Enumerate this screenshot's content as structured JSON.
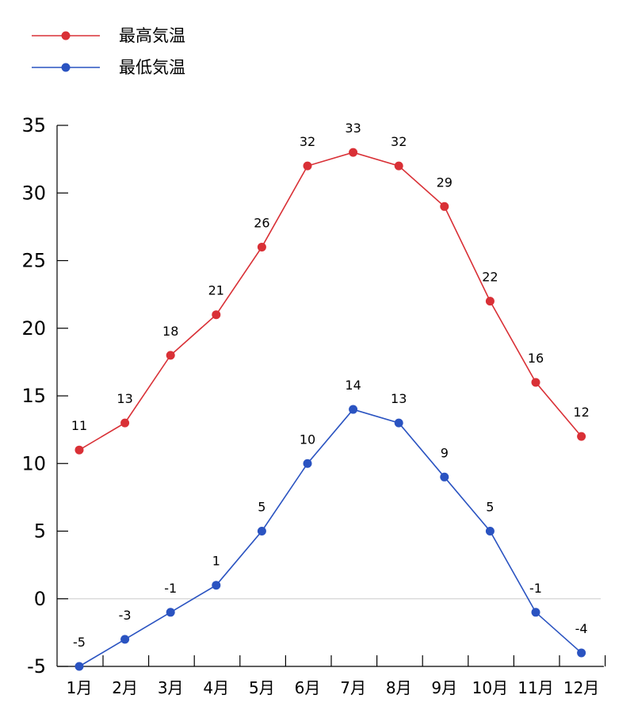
{
  "chart_data": {
    "type": "line",
    "categories": [
      "1月",
      "2月",
      "3月",
      "4月",
      "5月",
      "6月",
      "7月",
      "8月",
      "9月",
      "10月",
      "11月",
      "12月"
    ],
    "series": [
      {
        "name": "最高気温",
        "color": "#d93036",
        "values": [
          11,
          13,
          18,
          21,
          26,
          32,
          33,
          32,
          29,
          22,
          16,
          12
        ]
      },
      {
        "name": "最低気温",
        "color": "#2a53c1",
        "values": [
          -5,
          -3,
          -1,
          1,
          5,
          10,
          14,
          13,
          9,
          5,
          -1,
          -4
        ]
      }
    ],
    "yticks": [
      35,
      30,
      25,
      20,
      15,
      10,
      5,
      0,
      -5
    ],
    "ylim": [
      -5,
      35
    ],
    "title": "",
    "xlabel": "",
    "ylabel": "",
    "legend": "top-left",
    "zero_line": true
  }
}
